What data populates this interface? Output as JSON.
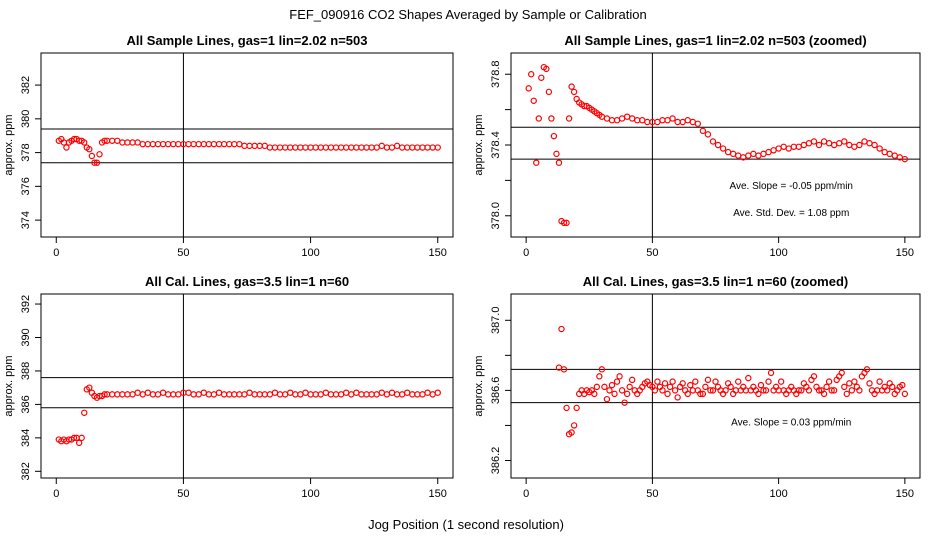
{
  "figure": {
    "title": "FEF_090916  CO2 Shapes Averaged by Sample or Calibration",
    "xlabel": "Jog Position (1 second resolution)"
  },
  "colors": {
    "points": "#ff0000",
    "lines": "#000000",
    "background": "#ffffff"
  },
  "chart_data": [
    {
      "type": "scatter",
      "title": "All Sample Lines, gas=1 lin=2.02 n=503",
      "ylabel": "approx. ppm",
      "xlim": [
        -6,
        156
      ],
      "ylim": [
        373.0,
        383.9
      ],
      "xticks": [
        0,
        50,
        100,
        150
      ],
      "yticks": [
        374,
        376,
        378,
        380,
        382
      ],
      "vline": 50,
      "hlines": [
        377.4,
        379.4
      ],
      "annotations": [],
      "series": [
        {
          "x": [
            1,
            2,
            3,
            4,
            5,
            6,
            7,
            8,
            9,
            10,
            11,
            12,
            13,
            14,
            15,
            16,
            17,
            18,
            19,
            20,
            22,
            24,
            26,
            28,
            30,
            32,
            34,
            36,
            38,
            40,
            42,
            44,
            46,
            48,
            50,
            52,
            54,
            56,
            58,
            60,
            62,
            64,
            66,
            68,
            70,
            72,
            74,
            76,
            78,
            80,
            82,
            84,
            86,
            88,
            90,
            92,
            94,
            96,
            98,
            100,
            102,
            104,
            106,
            108,
            110,
            112,
            114,
            116,
            118,
            120,
            122,
            124,
            126,
            128,
            130,
            132,
            134,
            136,
            138,
            140,
            142,
            144,
            146,
            148,
            150
          ],
          "y": [
            378.7,
            378.8,
            378.6,
            378.3,
            378.6,
            378.7,
            378.8,
            378.8,
            378.7,
            378.7,
            378.6,
            378.3,
            378.2,
            377.8,
            377.4,
            377.4,
            377.9,
            378.6,
            378.7,
            378.7,
            378.7,
            378.7,
            378.6,
            378.6,
            378.6,
            378.6,
            378.5,
            378.5,
            378.5,
            378.5,
            378.5,
            378.5,
            378.5,
            378.5,
            378.5,
            378.5,
            378.5,
            378.5,
            378.5,
            378.5,
            378.5,
            378.5,
            378.5,
            378.5,
            378.5,
            378.5,
            378.4,
            378.4,
            378.4,
            378.4,
            378.4,
            378.3,
            378.3,
            378.3,
            378.3,
            378.3,
            378.3,
            378.3,
            378.3,
            378.3,
            378.3,
            378.3,
            378.3,
            378.3,
            378.3,
            378.3,
            378.3,
            378.3,
            378.3,
            378.3,
            378.3,
            378.3,
            378.3,
            378.4,
            378.3,
            378.3,
            378.4,
            378.3,
            378.3,
            378.3,
            378.3,
            378.3,
            378.3,
            378.3,
            378.3
          ]
        }
      ]
    },
    {
      "type": "scatter",
      "title": "All Sample Lines, gas=1 lin=2.02 n=503 (zoomed)",
      "ylabel": "approx. ppm",
      "xlim": [
        -6,
        156
      ],
      "ylim": [
        377.88,
        378.92
      ],
      "xticks": [
        0,
        50,
        100,
        150
      ],
      "yticks": [
        378.0,
        378.2,
        378.4,
        378.6,
        378.8
      ],
      "ytick_labels": [
        "378.0",
        "",
        "378.4",
        "",
        "378.8"
      ],
      "vline": 50,
      "hlines": [
        378.5,
        378.32
      ],
      "annotations": [
        {
          "text": "Ave. Slope =  -0.05  ppm/min",
          "x": 105,
          "y": 378.15
        },
        {
          "text": "Ave. Std. Dev. =  1.08  ppm",
          "x": 105,
          "y": 378.0
        }
      ],
      "series": [
        {
          "x": [
            1,
            2,
            3,
            4,
            5,
            6,
            7,
            8,
            9,
            10,
            11,
            12,
            13,
            14,
            15,
            16,
            17,
            18,
            19,
            20,
            21,
            22,
            23,
            24,
            25,
            26,
            27,
            28,
            29,
            30,
            32,
            34,
            36,
            38,
            40,
            42,
            44,
            46,
            48,
            50,
            52,
            54,
            56,
            58,
            60,
            62,
            64,
            66,
            68,
            70,
            72,
            74,
            76,
            78,
            80,
            82,
            84,
            86,
            88,
            90,
            92,
            94,
            96,
            98,
            100,
            102,
            104,
            106,
            108,
            110,
            112,
            114,
            116,
            118,
            120,
            122,
            124,
            126,
            128,
            130,
            132,
            134,
            136,
            138,
            140,
            142,
            144,
            146,
            148,
            150
          ],
          "y": [
            378.72,
            378.8,
            378.65,
            378.3,
            378.55,
            378.78,
            378.84,
            378.83,
            378.7,
            378.55,
            378.45,
            378.35,
            378.3,
            377.97,
            377.96,
            377.96,
            378.55,
            378.73,
            378.7,
            378.66,
            378.64,
            378.63,
            378.62,
            378.62,
            378.61,
            378.6,
            378.59,
            378.58,
            378.57,
            378.56,
            378.55,
            378.54,
            378.54,
            378.55,
            378.56,
            378.55,
            378.54,
            378.54,
            378.53,
            378.53,
            378.53,
            378.54,
            378.54,
            378.55,
            378.53,
            378.53,
            378.54,
            378.53,
            378.52,
            378.48,
            378.46,
            378.42,
            378.4,
            378.38,
            378.36,
            378.35,
            378.34,
            378.33,
            378.34,
            378.35,
            378.34,
            378.35,
            378.36,
            378.37,
            378.38,
            378.39,
            378.38,
            378.39,
            378.39,
            378.4,
            378.41,
            378.42,
            378.4,
            378.42,
            378.41,
            378.4,
            378.41,
            378.42,
            378.4,
            378.39,
            378.4,
            378.42,
            378.41,
            378.4,
            378.38,
            378.36,
            378.35,
            378.34,
            378.33,
            378.32
          ]
        }
      ]
    },
    {
      "type": "scatter",
      "title": "All Cal. Lines, gas=3.5 lin=1 n=60",
      "ylabel": "approx. ppm",
      "xlim": [
        -6,
        156
      ],
      "ylim": [
        381.6,
        392.6
      ],
      "xticks": [
        0,
        50,
        100,
        150
      ],
      "yticks": [
        382,
        384,
        386,
        388,
        390,
        392
      ],
      "ytick_labels": [
        "382",
        "384",
        "386",
        "388",
        "390",
        "392"
      ],
      "vline": 50,
      "hlines": [
        387.6,
        385.8
      ],
      "annotations": [],
      "series": [
        {
          "x": [
            1,
            2,
            3,
            4,
            5,
            6,
            7,
            8,
            9,
            10,
            11,
            12,
            13,
            14,
            15,
            16,
            17,
            18,
            19,
            20,
            22,
            24,
            26,
            28,
            30,
            32,
            34,
            36,
            38,
            40,
            42,
            44,
            46,
            48,
            50,
            52,
            54,
            56,
            58,
            60,
            62,
            64,
            66,
            68,
            70,
            72,
            74,
            76,
            78,
            80,
            82,
            84,
            86,
            88,
            90,
            92,
            94,
            96,
            98,
            100,
            102,
            104,
            106,
            108,
            110,
            112,
            114,
            116,
            118,
            120,
            122,
            124,
            126,
            128,
            130,
            132,
            134,
            136,
            138,
            140,
            142,
            144,
            146,
            148,
            150
          ],
          "y": [
            383.9,
            383.8,
            383.9,
            383.8,
            383.9,
            383.9,
            384.0,
            384.0,
            383.7,
            384.0,
            385.5,
            386.9,
            387.0,
            386.7,
            386.5,
            386.4,
            386.5,
            386.5,
            386.6,
            386.6,
            386.6,
            386.6,
            386.6,
            386.6,
            386.6,
            386.7,
            386.6,
            386.7,
            386.6,
            386.6,
            386.7,
            386.6,
            386.6,
            386.6,
            386.7,
            386.7,
            386.6,
            386.6,
            386.7,
            386.6,
            386.6,
            386.7,
            386.6,
            386.6,
            386.6,
            386.6,
            386.6,
            386.7,
            386.6,
            386.6,
            386.6,
            386.6,
            386.7,
            386.6,
            386.6,
            386.7,
            386.6,
            386.6,
            386.7,
            386.6,
            386.6,
            386.6,
            386.7,
            386.6,
            386.6,
            386.6,
            386.7,
            386.6,
            386.7,
            386.6,
            386.6,
            386.6,
            386.6,
            386.7,
            386.6,
            386.7,
            386.6,
            386.6,
            386.7,
            386.6,
            386.6,
            386.6,
            386.7,
            386.6,
            386.7
          ]
        }
      ]
    },
    {
      "type": "scatter",
      "title": "All Cal. Lines, gas=3.5 lin=1 n=60 (zoomed)",
      "ylabel": "approx. ppm",
      "xlim": [
        -6,
        156
      ],
      "ylim": [
        386.1,
        387.15
      ],
      "xticks": [
        0,
        50,
        100,
        150
      ],
      "yticks": [
        386.2,
        386.4,
        386.6,
        386.8,
        387.0
      ],
      "ytick_labels": [
        "386.2",
        "",
        "386.6",
        "",
        "387.0"
      ],
      "vline": 50,
      "hlines": [
        386.72,
        386.53
      ],
      "annotations": [
        {
          "text": "Ave. Slope =  0.03  ppm/min",
          "x": 105,
          "y": 386.4
        }
      ],
      "series": [
        {
          "x": [
            13,
            14,
            15,
            16,
            17,
            18,
            19,
            20,
            21,
            22,
            23,
            24,
            25,
            26,
            27,
            28,
            29,
            30,
            31,
            32,
            33,
            34,
            35,
            36,
            37,
            38,
            39,
            40,
            41,
            42,
            43,
            44,
            45,
            46,
            47,
            48,
            49,
            50,
            51,
            52,
            53,
            54,
            55,
            56,
            57,
            58,
            59,
            60,
            61,
            62,
            63,
            64,
            65,
            66,
            67,
            68,
            69,
            70,
            71,
            72,
            73,
            74,
            75,
            76,
            77,
            78,
            79,
            80,
            81,
            82,
            83,
            84,
            85,
            86,
            87,
            88,
            89,
            90,
            91,
            92,
            93,
            94,
            95,
            96,
            97,
            98,
            99,
            100,
            101,
            102,
            103,
            104,
            105,
            106,
            107,
            108,
            109,
            110,
            111,
            112,
            113,
            114,
            115,
            116,
            117,
            118,
            119,
            120,
            121,
            122,
            123,
            124,
            125,
            126,
            127,
            128,
            129,
            130,
            131,
            132,
            133,
            134,
            135,
            136,
            137,
            138,
            139,
            140,
            141,
            142,
            143,
            144,
            145,
            146,
            147,
            148,
            149,
            150
          ],
          "y": [
            386.73,
            386.95,
            386.72,
            386.5,
            386.35,
            386.36,
            386.4,
            386.5,
            386.58,
            386.6,
            386.58,
            386.6,
            386.59,
            386.6,
            386.58,
            386.62,
            386.68,
            386.72,
            386.62,
            386.55,
            386.6,
            386.63,
            386.58,
            386.65,
            386.68,
            386.6,
            386.53,
            386.58,
            386.62,
            386.66,
            386.6,
            386.58,
            386.6,
            386.62,
            386.64,
            386.65,
            386.63,
            386.62,
            386.6,
            386.65,
            386.62,
            386.6,
            386.64,
            386.58,
            386.62,
            386.65,
            386.6,
            386.56,
            386.62,
            386.64,
            386.6,
            386.58,
            386.63,
            386.6,
            386.65,
            386.6,
            386.58,
            386.58,
            386.62,
            386.66,
            386.6,
            386.6,
            386.65,
            386.62,
            386.6,
            386.58,
            386.6,
            386.64,
            386.62,
            386.58,
            386.6,
            386.65,
            386.6,
            386.62,
            386.6,
            386.67,
            386.6,
            386.62,
            386.6,
            386.58,
            386.63,
            386.6,
            386.6,
            386.65,
            386.7,
            386.6,
            386.62,
            386.6,
            386.65,
            386.6,
            386.58,
            386.6,
            386.62,
            386.6,
            386.58,
            386.6,
            386.6,
            386.64,
            386.62,
            386.6,
            386.66,
            386.68,
            386.62,
            386.6,
            386.6,
            386.58,
            386.62,
            386.65,
            386.6,
            386.6,
            386.66,
            386.68,
            386.7,
            386.62,
            386.58,
            386.64,
            386.6,
            386.65,
            386.62,
            386.6,
            386.68,
            386.7,
            386.72,
            386.64,
            386.6,
            386.58,
            386.6,
            386.65,
            386.6,
            386.62,
            386.6,
            386.64,
            386.62,
            386.58,
            386.6,
            386.62,
            386.63,
            386.58
          ]
        }
      ]
    }
  ]
}
